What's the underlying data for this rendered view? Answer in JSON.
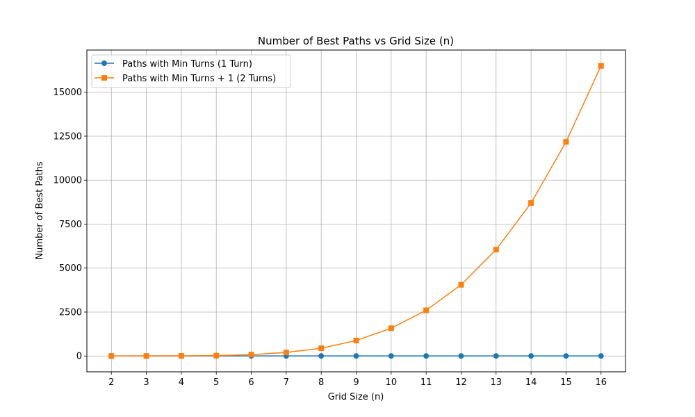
{
  "chart_data": {
    "type": "line",
    "title": "Number of Best Paths vs Grid Size (n)",
    "xlabel": "Grid Size (n)",
    "ylabel": "Number of Best Paths",
    "x": [
      2,
      3,
      4,
      5,
      6,
      7,
      8,
      9,
      10,
      11,
      12,
      13,
      14,
      15,
      16
    ],
    "xticks": [
      "2",
      "3",
      "4",
      "5",
      "6",
      "7",
      "8",
      "9",
      "10",
      "11",
      "12",
      "13",
      "14",
      "15",
      "16"
    ],
    "yticks": [
      "0",
      "2500",
      "5000",
      "7500",
      "10000",
      "12500",
      "15000"
    ],
    "xlim": [
      1.3,
      16.7
    ],
    "ylim": [
      -900,
      17400
    ],
    "grid": true,
    "legend_position": "upper-left",
    "series": [
      {
        "name": "Paths with Min Turns (1 Turn)",
        "color": "#1f77b4",
        "marker": "circle",
        "values": [
          2,
          2,
          2,
          2,
          2,
          2,
          2,
          2,
          2,
          2,
          2,
          2,
          2,
          2,
          2
        ]
      },
      {
        "name": "Paths with Min Turns + 1 (2 Turns)",
        "color": "#ff7f0e",
        "marker": "square",
        "values": [
          0,
          2,
          8,
          24,
          80,
          200,
          440,
          880,
          1580,
          2600,
          4050,
          6050,
          8700,
          12180,
          16500
        ]
      }
    ]
  }
}
